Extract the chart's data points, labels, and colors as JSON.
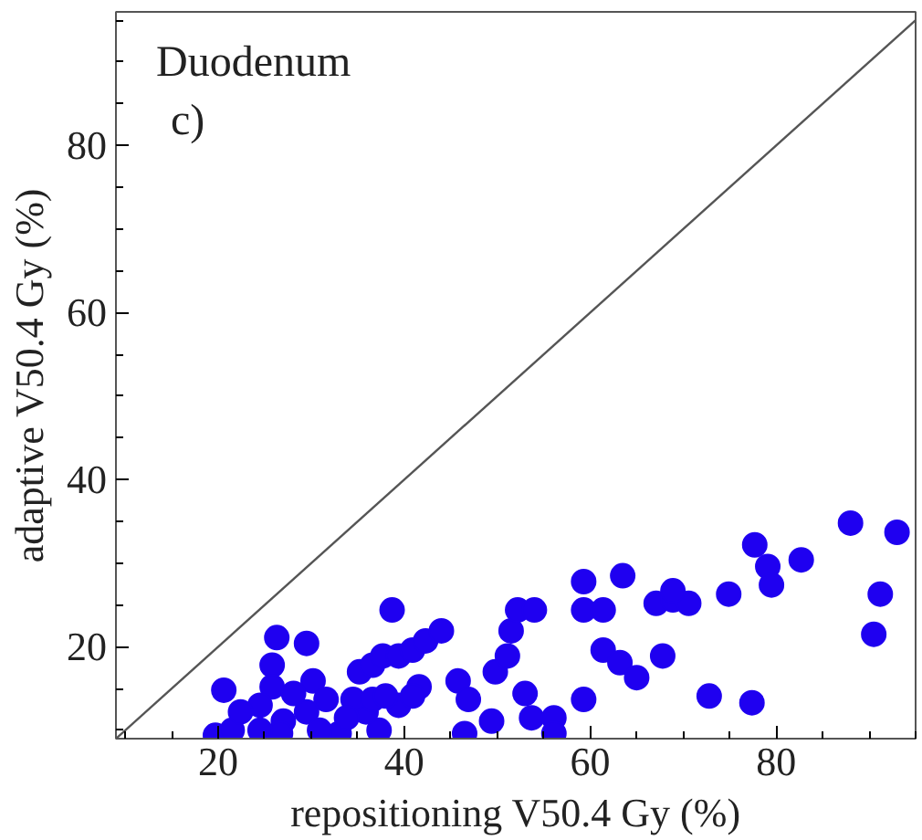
{
  "chart_data": {
    "type": "scatter",
    "xlabel": "repositioning V50.4 Gy (%)",
    "ylabel": "adaptive V50.4 Gy (%)",
    "annotations": [
      "Duodenum",
      "c)"
    ],
    "xlim": [
      9,
      95
    ],
    "ylim": [
      9,
      96
    ],
    "xticks": [
      20,
      40,
      60,
      80
    ],
    "yticks": [
      20,
      40,
      60,
      80
    ],
    "grid": false,
    "series": [
      {
        "type": "line",
        "color": "#555555",
        "x": [
          9,
          95
        ],
        "values": [
          9,
          95
        ]
      },
      {
        "marker": "circle",
        "color": "#1f00f0",
        "x": [
          20.6,
          19.7,
          21.5,
          26.3,
          29.5,
          25.8,
          25.8,
          24.5,
          27,
          30.2,
          31.6,
          29.5,
          33,
          35.2,
          36.6,
          38.7,
          37.7,
          39.4,
          40.9,
          42.3,
          44,
          41.6,
          39.4,
          37.3,
          35.9,
          34.5,
          45.8,
          46.9,
          46.5,
          49.4,
          49.8,
          51.1,
          51.5,
          52.2,
          54,
          53,
          53.7,
          56.1,
          56.1,
          59.3,
          59.3,
          59.3,
          61.4,
          61.4,
          63.2,
          65,
          63.5,
          67.8,
          67.1,
          68.9,
          70.6,
          68.9,
          72.8,
          74.9,
          77.4,
          77.7,
          79.1,
          79.5,
          82.7,
          88,
          93,
          91.2,
          90.5,
          22.4,
          28.1,
          30.9,
          26.7,
          24.5,
          33.8,
          36.6,
          38,
          40.9
        ],
        "values": [
          14.8,
          9.4,
          10,
          21.1,
          20.4,
          17.8,
          15.2,
          13,
          11.1,
          15.9,
          13.7,
          12.2,
          9.6,
          17,
          17.8,
          24.4,
          18.9,
          18.9,
          19.6,
          20.7,
          21.9,
          15.2,
          13,
          10,
          12.2,
          13.7,
          15.9,
          13.7,
          9.6,
          11.1,
          17,
          18.9,
          21.9,
          24.4,
          24.4,
          14.4,
          11.5,
          11.5,
          9.6,
          13.7,
          27.8,
          24.4,
          24.4,
          19.6,
          18.1,
          16.3,
          28.5,
          18.9,
          25.2,
          25.6,
          25.2,
          26.7,
          14.1,
          26.3,
          13.3,
          32.2,
          29.6,
          27.4,
          30.4,
          34.8,
          33.7,
          26.3,
          21.5,
          12.2,
          14.4,
          10,
          9.6,
          10,
          11.5,
          13.7,
          14.1,
          14.1
        ]
      }
    ]
  }
}
